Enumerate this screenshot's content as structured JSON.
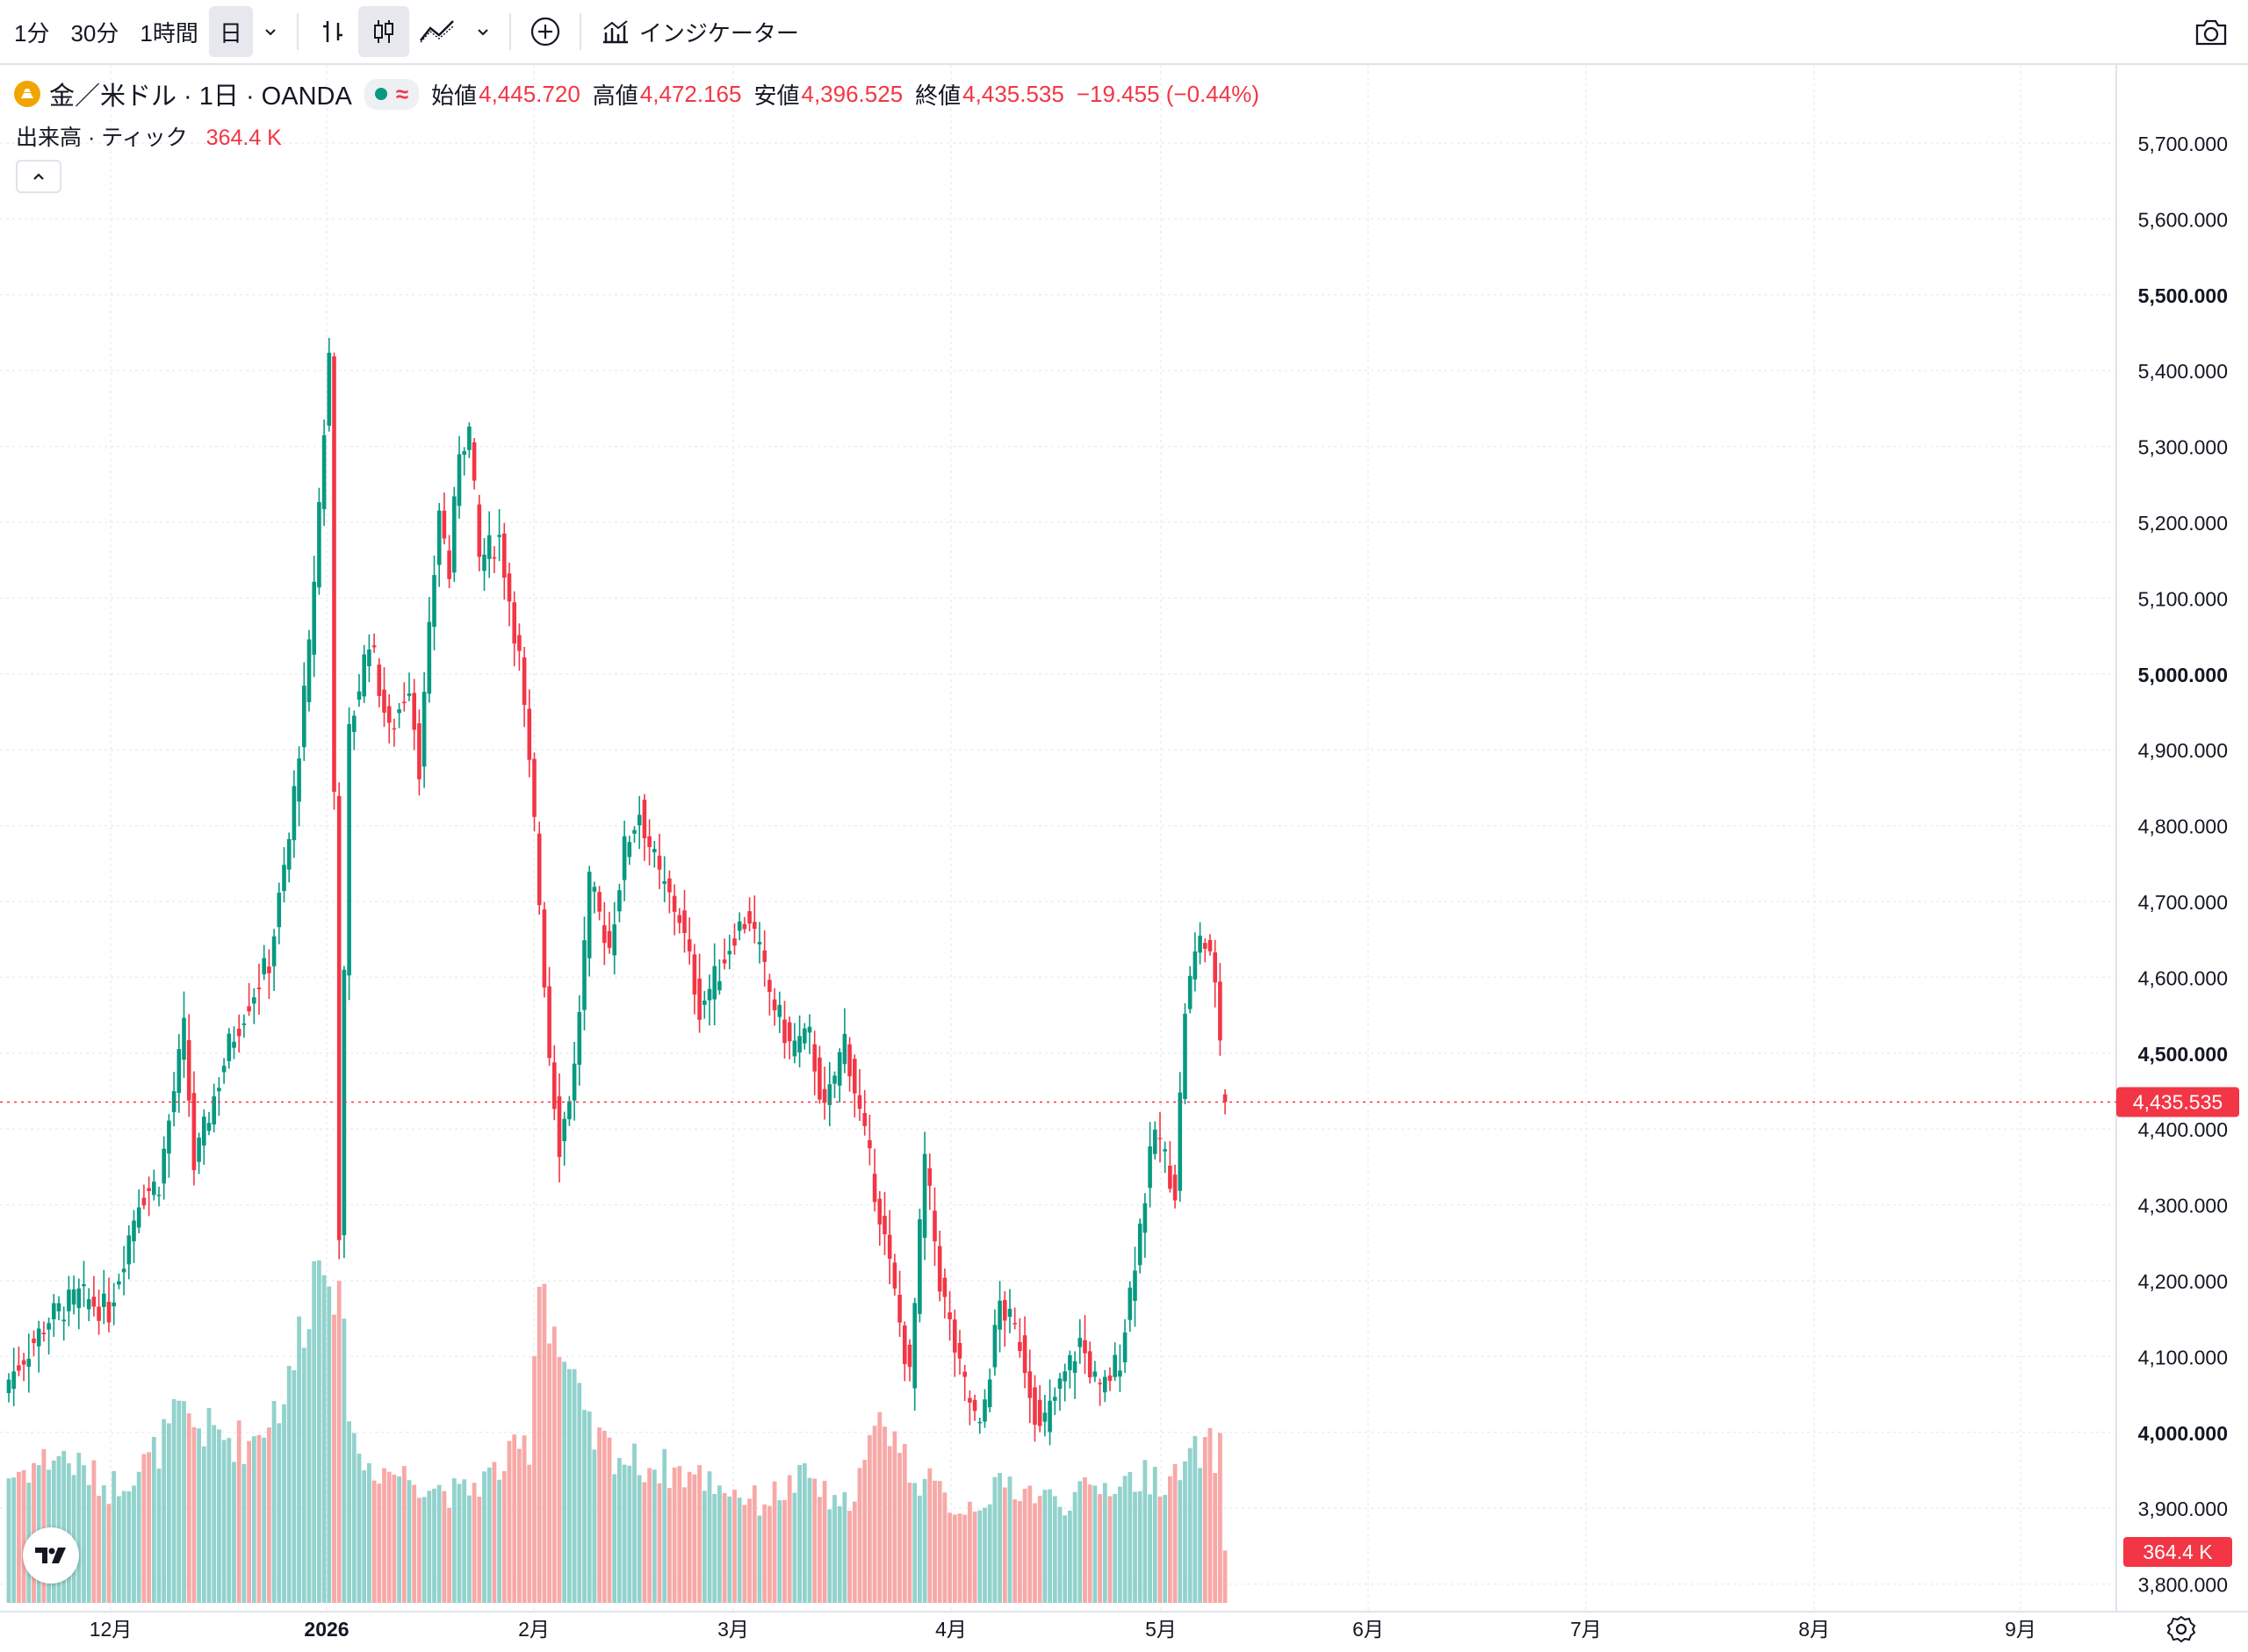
{
  "toolbar": {
    "intervals": [
      "1分",
      "30分",
      "1時間",
      "日"
    ],
    "active_interval": "日",
    "indicators_label": "インジケーター"
  },
  "legend": {
    "title": "金／米ドル · 1日 · OANDA",
    "open_label": "始値",
    "open": "4,445.720",
    "high_label": "高値",
    "high": "4,472.165",
    "low_label": "安値",
    "low": "4,396.525",
    "close_label": "終値",
    "close": "4,435.535",
    "change": "−19.455 (−0.44%)",
    "volume_label": "出来高 · ティック",
    "volume": "364.4 K"
  },
  "chart_data": {
    "type": "candlestick",
    "x_ticks": [
      "12月",
      "2026",
      "2月",
      "3月",
      "4月",
      "5月",
      "6月",
      "7月",
      "8月",
      "9月"
    ],
    "y_ticks": [
      "5,700.000",
      "5,600.000",
      "5,500.000",
      "5,400.000",
      "5,300.000",
      "5,200.000",
      "5,100.000",
      "5,000.000",
      "4,900.000",
      "4,800.000",
      "4,700.000",
      "4,600.000",
      "4,500.000",
      "4,400.000",
      "4,300.000",
      "4,200.000",
      "4,100.000",
      "4,000.000",
      "3,900.000",
      "3,800.000"
    ],
    "y_bold_ticks": [
      "5,500.000",
      "5,000.000",
      "4,500.000",
      "4,000.000"
    ],
    "ylim": [
      3800,
      5700
    ],
    "last_price_label": "4,435.535",
    "last_price": 4435.535,
    "volume_label": "364.4 K",
    "colors": {
      "up": "#089981",
      "down": "#f23645",
      "vol_up": "#92d2cc",
      "vol_down": "#f7a9a7"
    },
    "anchors": [
      [
        0,
        4070
      ],
      [
        8,
        4150
      ],
      [
        14,
        4180
      ],
      [
        20,
        4160
      ],
      [
        26,
        4310
      ],
      [
        30,
        4330
      ],
      [
        35,
        4530
      ],
      [
        37,
        4350
      ],
      [
        40,
        4420
      ],
      [
        44,
        4510
      ],
      [
        48,
        4570
      ],
      [
        52,
        4620
      ],
      [
        56,
        4780
      ],
      [
        60,
        5030
      ],
      [
        64,
        5420
      ],
      [
        66,
        4270
      ],
      [
        68,
        4920
      ],
      [
        72,
        5050
      ],
      [
        76,
        4920
      ],
      [
        80,
        4990
      ],
      [
        82,
        4880
      ],
      [
        86,
        5220
      ],
      [
        88,
        5130
      ],
      [
        90,
        5300
      ],
      [
        92,
        5320
      ],
      [
        94,
        5150
      ],
      [
        98,
        5180
      ],
      [
        102,
        5020
      ],
      [
        105,
        4800
      ],
      [
        108,
        4500
      ],
      [
        110,
        4380
      ],
      [
        113,
        4480
      ],
      [
        116,
        4720
      ],
      [
        120,
        4640
      ],
      [
        123,
        4770
      ],
      [
        126,
        4820
      ],
      [
        130,
        4730
      ],
      [
        134,
        4680
      ],
      [
        138,
        4560
      ],
      [
        142,
        4610
      ],
      [
        145,
        4660
      ],
      [
        148,
        4680
      ],
      [
        152,
        4580
      ],
      [
        156,
        4510
      ],
      [
        160,
        4520
      ],
      [
        163,
        4420
      ],
      [
        167,
        4520
      ],
      [
        170,
        4420
      ],
      [
        174,
        4290
      ],
      [
        177,
        4180
      ],
      [
        180,
        4070
      ],
      [
        183,
        4360
      ],
      [
        186,
        4200
      ],
      [
        190,
        4080
      ],
      [
        194,
        4000
      ],
      [
        198,
        4170
      ],
      [
        202,
        4120
      ],
      [
        206,
        4000
      ],
      [
        210,
        4060
      ],
      [
        214,
        4120
      ],
      [
        218,
        4050
      ],
      [
        222,
        4100
      ],
      [
        225,
        4230
      ],
      [
        229,
        4400
      ],
      [
        233,
        4320
      ],
      [
        235,
        4560
      ],
      [
        238,
        4660
      ],
      [
        241,
        4600
      ],
      [
        243,
        4440
      ]
    ],
    "volume_anchors": [
      [
        0,
        0.34
      ],
      [
        10,
        0.4
      ],
      [
        20,
        0.31
      ],
      [
        28,
        0.38
      ],
      [
        34,
        0.5
      ],
      [
        40,
        0.46
      ],
      [
        48,
        0.43
      ],
      [
        56,
        0.58
      ],
      [
        60,
        0.85
      ],
      [
        64,
        1.0
      ],
      [
        66,
        0.76
      ],
      [
        70,
        0.38
      ],
      [
        80,
        0.34
      ],
      [
        90,
        0.29
      ],
      [
        98,
        0.36
      ],
      [
        104,
        0.43
      ],
      [
        106,
        0.92
      ],
      [
        110,
        0.68
      ],
      [
        116,
        0.45
      ],
      [
        124,
        0.38
      ],
      [
        132,
        0.36
      ],
      [
        140,
        0.33
      ],
      [
        150,
        0.27
      ],
      [
        160,
        0.34
      ],
      [
        166,
        0.24
      ],
      [
        170,
        0.34
      ],
      [
        175,
        0.51
      ],
      [
        180,
        0.36
      ],
      [
        190,
        0.25
      ],
      [
        200,
        0.32
      ],
      [
        210,
        0.27
      ],
      [
        220,
        0.32
      ],
      [
        228,
        0.34
      ],
      [
        233,
        0.33
      ],
      [
        238,
        0.41
      ],
      [
        242,
        0.41
      ],
      [
        243,
        0.14
      ]
    ]
  }
}
